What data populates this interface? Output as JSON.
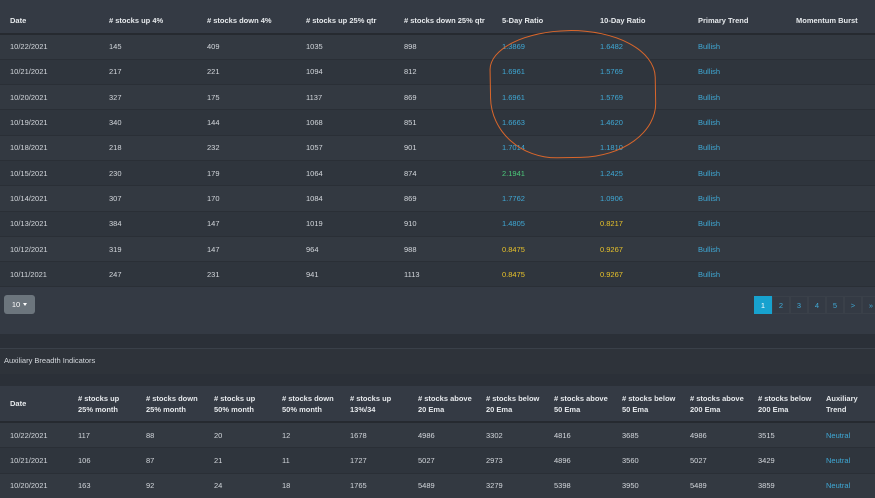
{
  "main_table": {
    "headers": [
      "Date",
      "# stocks up 4%",
      "# stocks down 4%",
      "# stocks up 25% qtr",
      "# stocks down 25% qtr",
      "5-Day Ratio",
      "10-Day Ratio",
      "Primary Trend",
      "Momentum Burst"
    ],
    "rows": [
      {
        "date": "10/22/2021",
        "up4": "145",
        "down4": "409",
        "up25": "1035",
        "down25": "898",
        "r5": "1.3869",
        "r10": "1.6482",
        "trend": "Bullish",
        "burst": ""
      },
      {
        "date": "10/21/2021",
        "up4": "217",
        "down4": "221",
        "up25": "1094",
        "down25": "812",
        "r5": "1.6961",
        "r10": "1.5769",
        "trend": "Bullish",
        "burst": ""
      },
      {
        "date": "10/20/2021",
        "up4": "327",
        "down4": "175",
        "up25": "1137",
        "down25": "869",
        "r5": "1.6961",
        "r10": "1.5769",
        "trend": "Bullish",
        "burst": ""
      },
      {
        "date": "10/19/2021",
        "up4": "340",
        "down4": "144",
        "up25": "1068",
        "down25": "851",
        "r5": "1.6663",
        "r10": "1.4620",
        "trend": "Bullish",
        "burst": ""
      },
      {
        "date": "10/18/2021",
        "up4": "218",
        "down4": "232",
        "up25": "1057",
        "down25": "901",
        "r5": "1.7014",
        "r10": "1.1810",
        "trend": "Bullish",
        "burst": ""
      },
      {
        "date": "10/15/2021",
        "up4": "230",
        "down4": "179",
        "up25": "1064",
        "down25": "874",
        "r5": "2.1941",
        "r10": "1.2425",
        "trend": "Bullish",
        "burst": ""
      },
      {
        "date": "10/14/2021",
        "up4": "307",
        "down4": "170",
        "up25": "1084",
        "down25": "869",
        "r5": "1.7762",
        "r10": "1.0906",
        "trend": "Bullish",
        "burst": ""
      },
      {
        "date": "10/13/2021",
        "up4": "384",
        "down4": "147",
        "up25": "1019",
        "down25": "910",
        "r5": "1.4805",
        "r10": "0.8217",
        "trend": "Bullish",
        "burst": ""
      },
      {
        "date": "10/12/2021",
        "up4": "319",
        "down4": "147",
        "up25": "964",
        "down25": "988",
        "r5": "0.8475",
        "r10": "0.9267",
        "trend": "Bullish",
        "burst": ""
      },
      {
        "date": "10/11/2021",
        "up4": "247",
        "down4": "231",
        "up25": "941",
        "down25": "1113",
        "r5": "0.8475",
        "r10": "0.9267",
        "trend": "Bullish",
        "burst": ""
      }
    ]
  },
  "pagination": {
    "page_size": "10",
    "pages": [
      "1",
      "2",
      "3",
      "4",
      "5",
      ">",
      "»"
    ]
  },
  "aux": {
    "title": "Auxiliary Breadth Indicators",
    "headers": [
      "Date",
      "# stocks up\n25% month",
      "# stocks down\n25% month",
      "# stocks up\n50% month",
      "# stocks down\n50% month",
      "# stocks up\n13%/34",
      "# stocks above\n20 Ema",
      "# stocks below\n20 Ema",
      "# stocks above\n50 Ema",
      "# stocks below\n50 Ema",
      "# stocks above\n200 Ema",
      "# stocks below\n200 Ema",
      "Auxiliary\nTrend"
    ],
    "rows": [
      [
        "10/22/2021",
        "117",
        "88",
        "20",
        "12",
        "1678",
        "4986",
        "3302",
        "4816",
        "3685",
        "4986",
        "3515",
        "Neutral"
      ],
      [
        "10/21/2021",
        "106",
        "87",
        "21",
        "11",
        "1727",
        "5027",
        "2973",
        "4896",
        "3560",
        "5027",
        "3429",
        "Neutral"
      ],
      [
        "10/20/2021",
        "163",
        "92",
        "24",
        "18",
        "1765",
        "5489",
        "3279",
        "5398",
        "3950",
        "5489",
        "3859",
        "Neutral"
      ]
    ]
  },
  "colors": {
    "background": "#2b3038",
    "panel": "#343a44",
    "link_blue": "#3fa9d6",
    "ratio_green": "#4cc97a",
    "ratio_yellow": "#e8c22a",
    "annotation_orange": "#d9662b",
    "active_page": "#17a2cf"
  }
}
